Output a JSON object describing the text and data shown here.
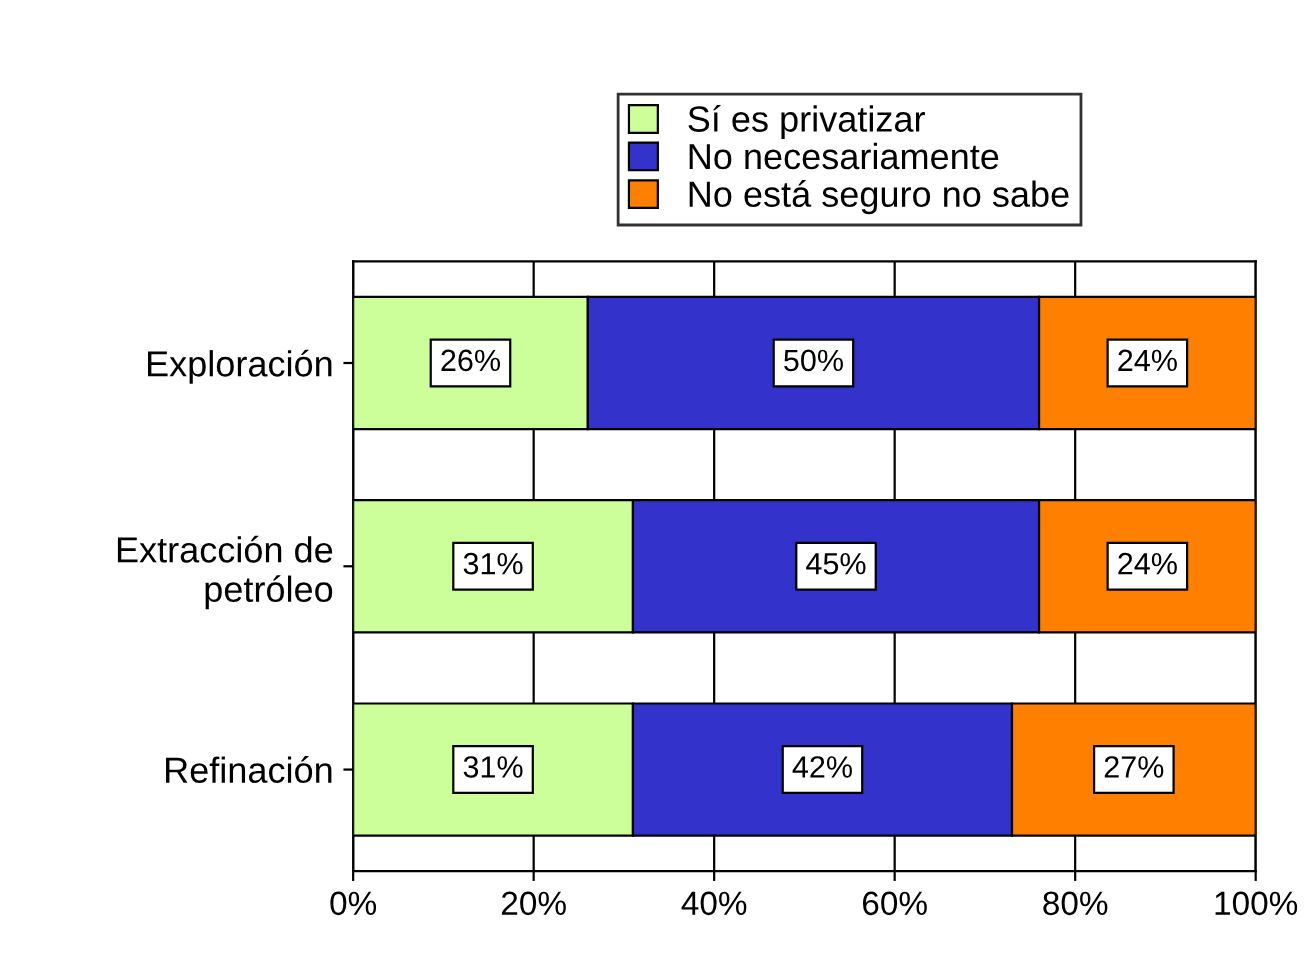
{
  "chart_data": {
    "type": "bar",
    "orientation": "horizontal",
    "stacked": true,
    "categories": [
      "Exploración",
      "Extracción de\npetróleo",
      "Refinación"
    ],
    "series": [
      {
        "name": "Sí es privatizar",
        "color": "#ccff99",
        "values": [
          26,
          31,
          31
        ],
        "value_labels": [
          "26%",
          "31%",
          "31%"
        ]
      },
      {
        "name": "No necesariamente",
        "color": "#3333cc",
        "values": [
          50,
          45,
          42
        ],
        "value_labels": [
          "50%",
          "45%",
          "42%"
        ]
      },
      {
        "name": "No está seguro no sabe",
        "color": "#ff8000",
        "values": [
          24,
          24,
          27
        ],
        "value_labels": [
          "24%",
          "24%",
          "27%"
        ]
      }
    ],
    "xlim": [
      0,
      100
    ],
    "xticks": [
      {
        "value": 0,
        "label": "0%"
      },
      {
        "value": 20,
        "label": "20%"
      },
      {
        "value": 40,
        "label": "40%"
      },
      {
        "value": 60,
        "label": "60%"
      },
      {
        "value": 80,
        "label": "80%"
      },
      {
        "value": 100,
        "label": "100%"
      }
    ],
    "grid": "x",
    "legend": "top"
  }
}
